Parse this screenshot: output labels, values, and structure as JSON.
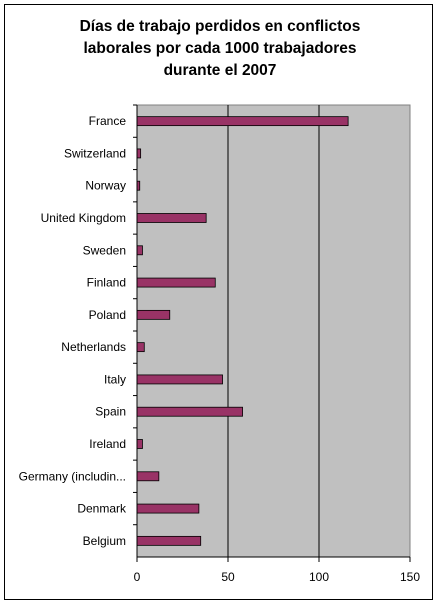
{
  "chart_data": {
    "type": "bar",
    "orientation": "horizontal",
    "title_lines": [
      "Días de trabajo perdidos en conflictos",
      "laborales por cada 1000 trabajadores",
      "durante el 2007"
    ],
    "categories": [
      "France",
      "Switzerland",
      "Norway",
      "United Kingdom",
      "Sweden",
      "Finland",
      "Poland",
      "Netherlands",
      "Italy",
      "Spain",
      "Ireland",
      "Germany (includin...",
      "Denmark",
      "Belgium"
    ],
    "values": [
      116,
      2,
      1.5,
      38,
      3,
      43,
      18,
      4,
      47,
      58,
      3,
      12,
      34,
      35
    ],
    "xlim": [
      0,
      150
    ],
    "xticks": [
      "0",
      "50",
      "100",
      "150"
    ],
    "grid": "vertical",
    "legend": "none",
    "colors": {
      "plot_bg": "#c0c0c0",
      "bar_fill": "#993366",
      "bar_stroke": "#000000",
      "grid": "#000000"
    }
  }
}
